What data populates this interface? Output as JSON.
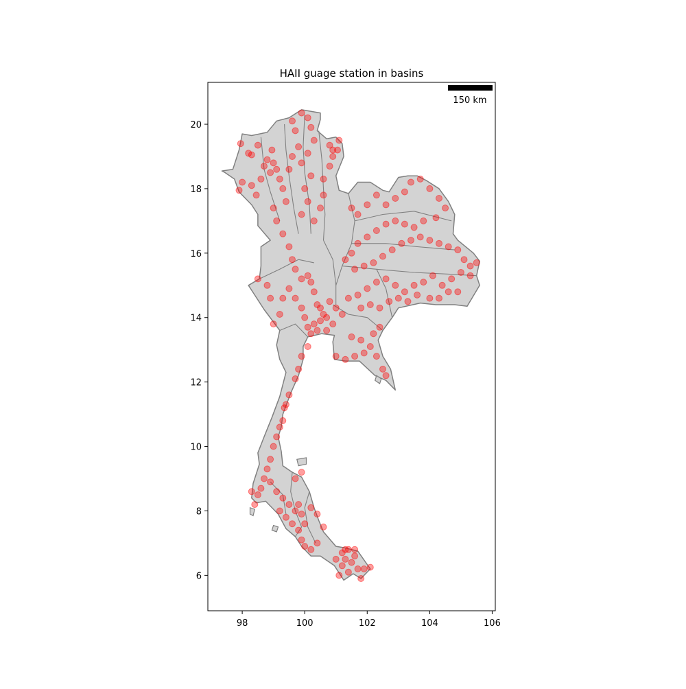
{
  "title": "HAII guage station in basins",
  "scalebar": {
    "label": "150 km",
    "length_km": 150
  },
  "colors": {
    "land_fill": "#d3d3d3",
    "boundary": "#808080",
    "station": "#ff0000",
    "scalebar": "#000000"
  },
  "axes": {
    "xlim": [
      96.9,
      106.1
    ],
    "ylim": [
      4.9,
      21.3
    ],
    "xticks": [
      {
        "value": 98,
        "label": "98"
      },
      {
        "value": 100,
        "label": "100"
      },
      {
        "value": 102,
        "label": "102"
      },
      {
        "value": 104,
        "label": "104"
      },
      {
        "value": 106,
        "label": "106"
      }
    ],
    "yticks": [
      {
        "value": 6,
        "label": "6"
      },
      {
        "value": 8,
        "label": "8"
      },
      {
        "value": 10,
        "label": "10"
      },
      {
        "value": 12,
        "label": "12"
      },
      {
        "value": 14,
        "label": "14"
      },
      {
        "value": 16,
        "label": "16"
      },
      {
        "value": 18,
        "label": "18"
      },
      {
        "value": 20,
        "label": "20"
      }
    ]
  },
  "map": {
    "outline": [
      [
        97.35,
        18.55
      ],
      [
        97.7,
        18.6
      ],
      [
        97.8,
        18.9
      ],
      [
        97.9,
        19.2
      ],
      [
        98.0,
        19.7
      ],
      [
        98.3,
        19.65
      ],
      [
        98.8,
        19.75
      ],
      [
        99.1,
        20.1
      ],
      [
        99.5,
        20.2
      ],
      [
        99.9,
        20.45
      ],
      [
        100.2,
        20.4
      ],
      [
        100.5,
        20.35
      ],
      [
        100.5,
        20.15
      ],
      [
        100.4,
        19.8
      ],
      [
        100.7,
        19.55
      ],
      [
        101.0,
        19.6
      ],
      [
        101.2,
        19.4
      ],
      [
        101.25,
        19.0
      ],
      [
        101.0,
        18.4
      ],
      [
        101.1,
        17.95
      ],
      [
        101.4,
        17.85
      ],
      [
        101.7,
        18.2
      ],
      [
        102.1,
        18.2
      ],
      [
        102.5,
        17.95
      ],
      [
        102.7,
        17.9
      ],
      [
        103.0,
        18.35
      ],
      [
        103.3,
        18.4
      ],
      [
        103.6,
        18.4
      ],
      [
        103.9,
        18.25
      ],
      [
        104.3,
        18.0
      ],
      [
        104.6,
        17.6
      ],
      [
        104.8,
        17.2
      ],
      [
        104.75,
        16.6
      ],
      [
        104.9,
        16.4
      ],
      [
        105.4,
        16.0
      ],
      [
        105.6,
        15.75
      ],
      [
        105.5,
        15.3
      ],
      [
        105.6,
        15.0
      ],
      [
        105.2,
        14.35
      ],
      [
        104.8,
        14.4
      ],
      [
        104.2,
        14.4
      ],
      [
        103.7,
        14.45
      ],
      [
        103.0,
        14.3
      ],
      [
        102.8,
        14.0
      ],
      [
        102.5,
        13.6
      ],
      [
        102.35,
        13.3
      ],
      [
        102.5,
        12.8
      ],
      [
        102.75,
        12.4
      ],
      [
        102.9,
        11.75
      ],
      [
        102.6,
        12.05
      ],
      [
        102.25,
        12.2
      ],
      [
        101.75,
        12.65
      ],
      [
        101.3,
        12.65
      ],
      [
        100.95,
        12.7
      ],
      [
        100.9,
        13.25
      ],
      [
        100.95,
        13.45
      ],
      [
        100.55,
        13.5
      ],
      [
        100.1,
        13.4
      ],
      [
        99.95,
        13.1
      ],
      [
        99.95,
        12.7
      ],
      [
        99.8,
        12.2
      ],
      [
        99.55,
        11.65
      ],
      [
        99.3,
        11.0
      ],
      [
        99.25,
        10.6
      ],
      [
        99.15,
        10.3
      ],
      [
        99.25,
        9.85
      ],
      [
        99.3,
        9.4
      ],
      [
        99.6,
        9.2
      ],
      [
        99.9,
        9.05
      ],
      [
        100.15,
        8.6
      ],
      [
        100.3,
        8.1
      ],
      [
        100.45,
        7.7
      ],
      [
        100.6,
        7.35
      ],
      [
        101.0,
        6.9
      ],
      [
        101.3,
        6.85
      ],
      [
        101.7,
        6.75
      ],
      [
        102.1,
        6.2
      ],
      [
        101.8,
        5.9
      ],
      [
        101.55,
        6.05
      ],
      [
        101.25,
        5.85
      ],
      [
        100.95,
        6.3
      ],
      [
        100.5,
        6.6
      ],
      [
        100.2,
        6.6
      ],
      [
        99.9,
        6.9
      ],
      [
        99.7,
        7.2
      ],
      [
        99.4,
        7.45
      ],
      [
        99.15,
        7.9
      ],
      [
        98.75,
        8.3
      ],
      [
        98.45,
        8.25
      ],
      [
        98.3,
        8.4
      ],
      [
        98.35,
        8.85
      ],
      [
        98.55,
        9.45
      ],
      [
        98.5,
        9.8
      ],
      [
        98.7,
        10.3
      ],
      [
        98.95,
        10.9
      ],
      [
        99.2,
        11.55
      ],
      [
        99.4,
        12.3
      ],
      [
        99.2,
        12.7
      ],
      [
        99.1,
        13.15
      ],
      [
        99.2,
        13.6
      ],
      [
        98.7,
        14.25
      ],
      [
        98.4,
        14.7
      ],
      [
        98.2,
        15.0
      ],
      [
        98.55,
        15.2
      ],
      [
        98.6,
        15.6
      ],
      [
        98.6,
        16.2
      ],
      [
        98.9,
        16.4
      ],
      [
        98.5,
        16.85
      ],
      [
        98.5,
        17.2
      ],
      [
        98.3,
        17.5
      ],
      [
        97.9,
        17.9
      ],
      [
        97.75,
        18.3
      ],
      [
        97.45,
        18.5
      ]
    ],
    "islands": [
      [
        [
          102.3,
          12.2
        ],
        [
          102.45,
          12.1
        ],
        [
          102.4,
          11.95
        ],
        [
          102.25,
          12.05
        ]
      ],
      [
        [
          99.75,
          9.6
        ],
        [
          100.05,
          9.65
        ],
        [
          100.05,
          9.45
        ],
        [
          99.8,
          9.4
        ]
      ],
      [
        [
          98.25,
          8.1
        ],
        [
          98.4,
          8.05
        ],
        [
          98.35,
          7.85
        ],
        [
          98.25,
          7.9
        ]
      ],
      [
        [
          99.0,
          7.55
        ],
        [
          99.15,
          7.5
        ],
        [
          99.1,
          7.35
        ],
        [
          98.95,
          7.4
        ]
      ]
    ],
    "basin_lines": [
      [
        [
          98.6,
          19.6
        ],
        [
          98.7,
          18.6
        ],
        [
          98.9,
          17.9
        ],
        [
          99.2,
          17.0
        ]
      ],
      [
        [
          99.35,
          20.0
        ],
        [
          99.4,
          19.2
        ],
        [
          99.5,
          18.4
        ],
        [
          99.65,
          17.4
        ],
        [
          99.8,
          16.6
        ]
      ],
      [
        [
          100.0,
          20.3
        ],
        [
          99.95,
          19.3
        ],
        [
          100.0,
          18.5
        ],
        [
          100.15,
          17.5
        ],
        [
          100.2,
          16.6
        ]
      ],
      [
        [
          100.45,
          19.8
        ],
        [
          100.55,
          18.9
        ],
        [
          100.6,
          18.0
        ],
        [
          100.65,
          17.2
        ],
        [
          100.6,
          16.4
        ]
      ],
      [
        [
          98.55,
          15.2
        ],
        [
          99.2,
          15.5
        ],
        [
          99.8,
          15.8
        ],
        [
          100.3,
          15.7
        ]
      ],
      [
        [
          100.6,
          16.4
        ],
        [
          100.9,
          15.8
        ],
        [
          101.0,
          15.0
        ],
        [
          101.0,
          14.4
        ]
      ],
      [
        [
          101.4,
          17.85
        ],
        [
          101.6,
          17.0
        ],
        [
          101.5,
          16.3
        ],
        [
          101.2,
          15.6
        ],
        [
          101.0,
          15.0
        ]
      ],
      [
        [
          101.6,
          17.0
        ],
        [
          102.5,
          17.2
        ],
        [
          103.5,
          17.3
        ],
        [
          104.7,
          17.0
        ]
      ],
      [
        [
          101.5,
          16.3
        ],
        [
          102.6,
          16.3
        ],
        [
          103.6,
          16.2
        ],
        [
          104.8,
          16.1
        ]
      ],
      [
        [
          101.2,
          15.6
        ],
        [
          102.3,
          15.5
        ],
        [
          103.5,
          15.4
        ],
        [
          104.6,
          15.35
        ],
        [
          105.5,
          15.3
        ]
      ],
      [
        [
          102.3,
          15.5
        ],
        [
          102.6,
          14.9
        ],
        [
          102.8,
          14.0
        ]
      ],
      [
        [
          100.9,
          14.4
        ],
        [
          101.4,
          14.1
        ],
        [
          102.0,
          14.0
        ],
        [
          102.5,
          13.6
        ]
      ],
      [
        [
          99.2,
          13.6
        ],
        [
          99.7,
          13.8
        ],
        [
          100.1,
          13.4
        ]
      ],
      [
        [
          99.6,
          9.2
        ],
        [
          99.55,
          8.6
        ],
        [
          99.7,
          8.0
        ],
        [
          99.9,
          7.5
        ],
        [
          99.7,
          7.2
        ]
      ],
      [
        [
          100.15,
          8.6
        ],
        [
          100.0,
          8.1
        ],
        [
          100.1,
          7.5
        ],
        [
          100.35,
          7.0
        ]
      ],
      [
        [
          98.9,
          8.9
        ],
        [
          99.3,
          8.5
        ],
        [
          99.4,
          7.9
        ]
      ]
    ]
  },
  "stations": [
    [
      97.95,
      19.4
    ],
    [
      98.2,
      19.1
    ],
    [
      98.3,
      19.05
    ],
    [
      98.5,
      19.35
    ],
    [
      98.7,
      18.7
    ],
    [
      98.8,
      18.9
    ],
    [
      98.95,
      19.2
    ],
    [
      99.0,
      18.8
    ],
    [
      99.1,
      18.6
    ],
    [
      98.9,
      18.5
    ],
    [
      98.6,
      18.3
    ],
    [
      98.45,
      17.8
    ],
    [
      98.3,
      18.1
    ],
    [
      98.0,
      18.2
    ],
    [
      97.9,
      17.95
    ],
    [
      99.2,
      18.3
    ],
    [
      99.3,
      18.0
    ],
    [
      99.4,
      17.6
    ],
    [
      99.5,
      18.6
    ],
    [
      99.6,
      19.0
    ],
    [
      99.8,
      19.3
    ],
    [
      99.7,
      19.8
    ],
    [
      99.6,
      20.1
    ],
    [
      99.9,
      20.35
    ],
    [
      100.1,
      20.2
    ],
    [
      100.2,
      19.9
    ],
    [
      100.3,
      19.5
    ],
    [
      100.1,
      19.1
    ],
    [
      99.9,
      18.8
    ],
    [
      100.2,
      18.4
    ],
    [
      100.0,
      18.0
    ],
    [
      100.1,
      17.6
    ],
    [
      99.9,
      17.2
    ],
    [
      100.3,
      17.0
    ],
    [
      100.5,
      17.4
    ],
    [
      100.6,
      17.8
    ],
    [
      100.6,
      18.3
    ],
    [
      100.8,
      18.7
    ],
    [
      100.9,
      19.2
    ],
    [
      101.05,
      19.2
    ],
    [
      100.8,
      19.35
    ],
    [
      100.9,
      19.0
    ],
    [
      101.1,
      19.5
    ],
    [
      99.0,
      17.4
    ],
    [
      99.1,
      17.0
    ],
    [
      99.3,
      16.6
    ],
    [
      99.5,
      16.2
    ],
    [
      99.6,
      15.8
    ],
    [
      99.7,
      15.5
    ],
    [
      99.9,
      15.2
    ],
    [
      100.1,
      15.3
    ],
    [
      100.2,
      15.1
    ],
    [
      100.3,
      14.8
    ],
    [
      100.4,
      14.4
    ],
    [
      100.5,
      14.3
    ],
    [
      100.6,
      14.1
    ],
    [
      100.7,
      14.0
    ],
    [
      100.5,
      13.9
    ],
    [
      100.3,
      13.8
    ],
    [
      100.1,
      13.7
    ],
    [
      100.0,
      14.0
    ],
    [
      99.9,
      14.3
    ],
    [
      99.7,
      14.6
    ],
    [
      99.5,
      14.9
    ],
    [
      99.3,
      14.6
    ],
    [
      99.2,
      14.1
    ],
    [
      99.0,
      13.8
    ],
    [
      98.9,
      14.6
    ],
    [
      98.8,
      15.0
    ],
    [
      98.5,
      15.2
    ],
    [
      100.8,
      14.5
    ],
    [
      101.0,
      14.3
    ],
    [
      101.2,
      14.1
    ],
    [
      100.9,
      13.8
    ],
    [
      100.7,
      13.6
    ],
    [
      100.4,
      13.6
    ],
    [
      100.2,
      13.5
    ],
    [
      100.1,
      13.1
    ],
    [
      99.9,
      12.8
    ],
    [
      99.8,
      12.4
    ],
    [
      99.7,
      12.1
    ],
    [
      99.5,
      11.6
    ],
    [
      99.4,
      11.3
    ],
    [
      99.35,
      11.2
    ],
    [
      99.3,
      10.8
    ],
    [
      99.2,
      10.6
    ],
    [
      99.1,
      10.3
    ],
    [
      99.0,
      10.0
    ],
    [
      98.9,
      9.6
    ],
    [
      98.8,
      9.3
    ],
    [
      98.7,
      9.0
    ],
    [
      98.6,
      8.7
    ],
    [
      98.5,
      8.5
    ],
    [
      98.4,
      8.2
    ],
    [
      98.3,
      8.6
    ],
    [
      98.9,
      8.9
    ],
    [
      99.1,
      8.6
    ],
    [
      99.3,
      8.4
    ],
    [
      99.5,
      8.2
    ],
    [
      99.7,
      8.0
    ],
    [
      99.8,
      8.2
    ],
    [
      99.9,
      7.9
    ],
    [
      100.0,
      7.6
    ],
    [
      99.8,
      7.4
    ],
    [
      99.6,
      7.6
    ],
    [
      99.4,
      7.8
    ],
    [
      99.2,
      8.0
    ],
    [
      99.7,
      9.0
    ],
    [
      99.9,
      9.2
    ],
    [
      100.0,
      6.9
    ],
    [
      99.9,
      7.1
    ],
    [
      100.2,
      6.8
    ],
    [
      100.4,
      7.0
    ],
    [
      100.6,
      7.5
    ],
    [
      100.4,
      7.9
    ],
    [
      100.2,
      8.1
    ],
    [
      101.2,
      6.7
    ],
    [
      101.3,
      6.5
    ],
    [
      101.4,
      6.8
    ],
    [
      101.5,
      6.4
    ],
    [
      101.6,
      6.6
    ],
    [
      101.7,
      6.2
    ],
    [
      101.2,
      6.3
    ],
    [
      101.1,
      6.0
    ],
    [
      101.4,
      6.1
    ],
    [
      101.8,
      5.9
    ],
    [
      101.9,
      6.2
    ],
    [
      102.1,
      6.25
    ],
    [
      101.3,
      6.8
    ],
    [
      101.6,
      6.8
    ],
    [
      101.0,
      6.5
    ],
    [
      101.5,
      17.4
    ],
    [
      101.7,
      17.2
    ],
    [
      102.0,
      17.5
    ],
    [
      102.3,
      17.8
    ],
    [
      102.6,
      17.5
    ],
    [
      102.9,
      17.7
    ],
    [
      103.2,
      17.9
    ],
    [
      103.4,
      18.2
    ],
    [
      103.7,
      18.3
    ],
    [
      104.0,
      18.0
    ],
    [
      104.3,
      17.7
    ],
    [
      104.5,
      17.4
    ],
    [
      104.2,
      17.1
    ],
    [
      103.8,
      17.0
    ],
    [
      103.5,
      16.8
    ],
    [
      103.2,
      16.9
    ],
    [
      102.9,
      17.0
    ],
    [
      102.6,
      16.9
    ],
    [
      102.3,
      16.7
    ],
    [
      102.0,
      16.5
    ],
    [
      101.7,
      16.3
    ],
    [
      101.5,
      16.0
    ],
    [
      101.3,
      15.8
    ],
    [
      101.6,
      15.5
    ],
    [
      101.9,
      15.6
    ],
    [
      102.2,
      15.7
    ],
    [
      102.5,
      15.9
    ],
    [
      102.8,
      16.1
    ],
    [
      103.1,
      16.3
    ],
    [
      103.4,
      16.4
    ],
    [
      103.7,
      16.5
    ],
    [
      104.0,
      16.4
    ],
    [
      104.3,
      16.3
    ],
    [
      104.6,
      16.2
    ],
    [
      104.9,
      16.1
    ],
    [
      105.1,
      15.8
    ],
    [
      105.3,
      15.6
    ],
    [
      105.5,
      15.7
    ],
    [
      105.3,
      15.3
    ],
    [
      105.0,
      15.4
    ],
    [
      104.7,
      15.2
    ],
    [
      104.4,
      15.0
    ],
    [
      104.1,
      15.3
    ],
    [
      103.8,
      15.1
    ],
    [
      103.5,
      15.0
    ],
    [
      103.2,
      14.8
    ],
    [
      102.9,
      15.0
    ],
    [
      102.6,
      15.2
    ],
    [
      102.3,
      15.1
    ],
    [
      102.0,
      14.9
    ],
    [
      101.7,
      14.7
    ],
    [
      101.4,
      14.6
    ],
    [
      101.8,
      14.3
    ],
    [
      102.1,
      14.4
    ],
    [
      102.4,
      14.3
    ],
    [
      102.7,
      14.5
    ],
    [
      103.0,
      14.6
    ],
    [
      103.3,
      14.5
    ],
    [
      103.6,
      14.7
    ],
    [
      104.0,
      14.6
    ],
    [
      104.3,
      14.6
    ],
    [
      104.6,
      14.8
    ],
    [
      104.9,
      14.8
    ],
    [
      101.5,
      13.4
    ],
    [
      101.8,
      13.3
    ],
    [
      102.1,
      13.1
    ],
    [
      102.3,
      12.8
    ],
    [
      102.5,
      12.4
    ],
    [
      102.6,
      12.2
    ],
    [
      101.9,
      12.9
    ],
    [
      101.6,
      12.8
    ],
    [
      101.3,
      12.7
    ],
    [
      101.0,
      12.8
    ],
    [
      102.2,
      13.5
    ],
    [
      102.4,
      13.7
    ]
  ]
}
